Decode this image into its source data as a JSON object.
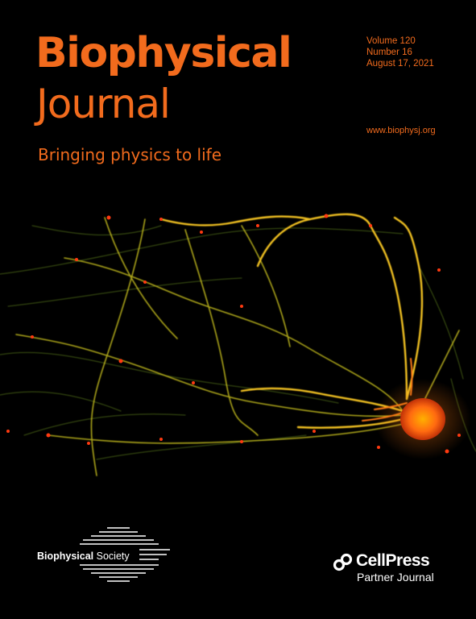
{
  "journal": {
    "title_line1": "Biophysical",
    "title_line2": "Journal",
    "tagline": "Bringing physics to life",
    "volume": "Volume 120",
    "number": "Number 16",
    "date": "August 17, 2021",
    "url": "www.biophysj.org",
    "accent_color": "#f26b1d"
  },
  "society": {
    "name_bold": "Biophysical",
    "name_regular": " Society",
    "icon": "biophysical-society-logo"
  },
  "partner": {
    "name": "CellPress",
    "subtitle": "Partner Journal",
    "icon": "cellpress-logo"
  },
  "cover_image": {
    "icon": "neuron-micrograph",
    "colors": [
      "#ffb000",
      "#e8d020",
      "#ff5a10",
      "#8fa030"
    ]
  }
}
